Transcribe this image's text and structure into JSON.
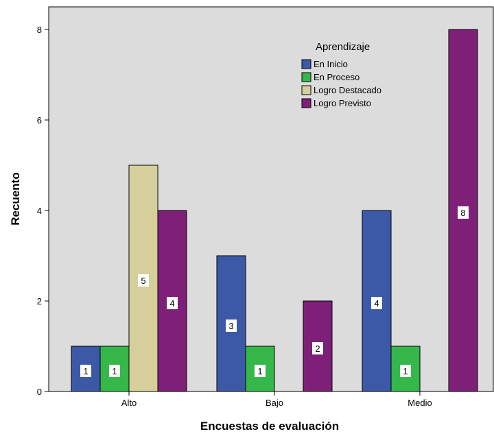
{
  "chart_data": {
    "type": "bar",
    "categories": [
      "Alto",
      "Bajo",
      "Medio"
    ],
    "xlabel": "Encuestas de evaluación",
    "ylabel": "Recuento",
    "ylim": [
      0,
      8.5
    ],
    "yticks": [
      0,
      2,
      4,
      6,
      8
    ],
    "grid": false,
    "legend": {
      "title": "Aprendizaje",
      "placement": "top-right"
    },
    "series": [
      {
        "name": "En Inicio",
        "color": "#3c59a8",
        "values": [
          1,
          3,
          4
        ]
      },
      {
        "name": "En Proceso",
        "color": "#35b74a",
        "values": [
          1,
          1,
          1
        ]
      },
      {
        "name": "Logro Destacado",
        "color": "#d6cf9b",
        "values": [
          5,
          0,
          0
        ]
      },
      {
        "name": "Logro Previsto",
        "color": "#7e2078",
        "values": [
          4,
          2,
          8
        ]
      }
    ],
    "plot_background": "#dcdcdc"
  }
}
